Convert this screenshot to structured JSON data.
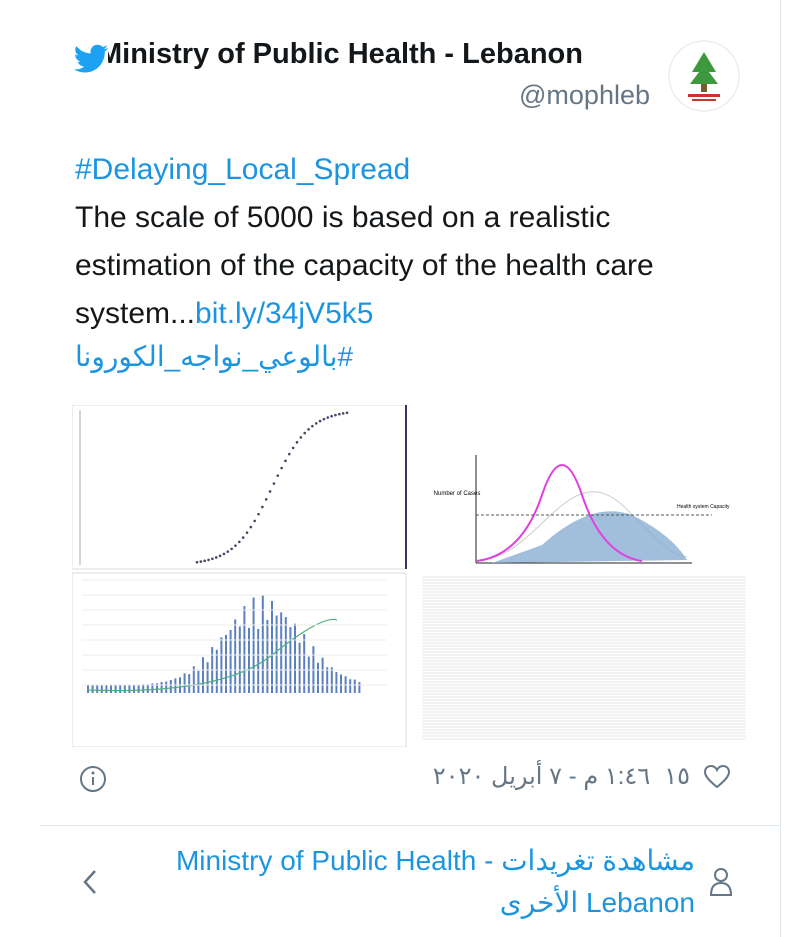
{
  "tweet": {
    "author_name": "Ministry of Public Health - Lebanon",
    "handle": "@mophleb",
    "hashtag": "#Delaying_Local_Spread",
    "body": "The scale of 5000 is based on a realistic estimation of the capacity of the health care system...",
    "link": "bit.ly/34jV5k5",
    "arabic_hashtag": "#بالوعي_نواجه_الكورونا",
    "image_texts": {
      "y_label": "Number of Cases",
      "capacity_label": "Health system Capacity"
    },
    "likes": "١٥",
    "timestamp": "١:٤٦ م - ٧ أبريل ٢٠٢٠"
  },
  "footer": {
    "prefix": "مشاهدة تغريدات",
    "name": "Ministry of Public Health - Lebanon",
    "suffix": "الأخرى"
  }
}
